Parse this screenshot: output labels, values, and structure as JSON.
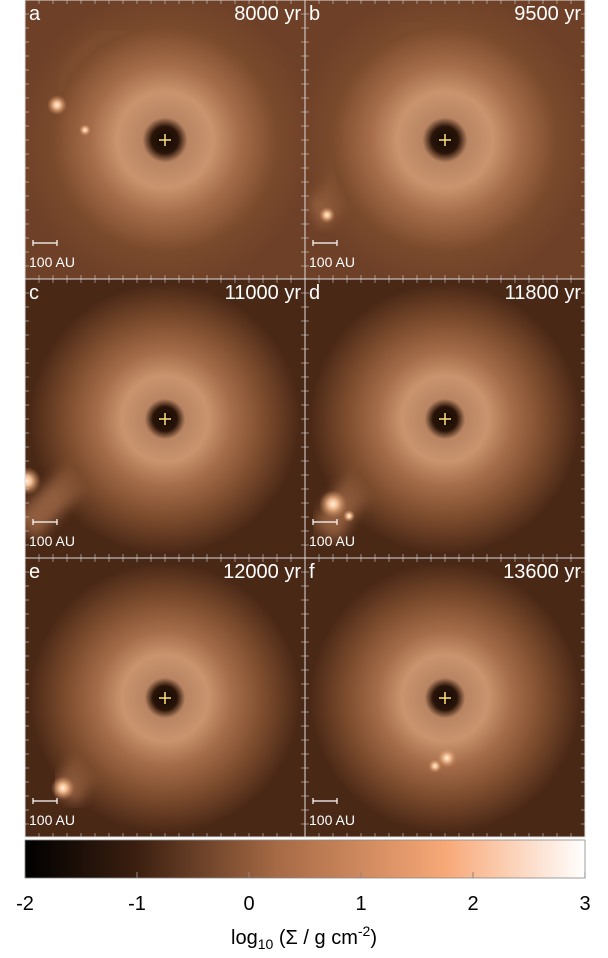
{
  "chart_data": {
    "type": "image-grid",
    "panels": [
      {
        "label": "a",
        "time": "8000 yr",
        "scale": "100 AU"
      },
      {
        "label": "b",
        "time": "9500 yr",
        "scale": "100 AU"
      },
      {
        "label": "c",
        "time": "11000 yr",
        "scale": "100 AU"
      },
      {
        "label": "d",
        "time": "11800 yr",
        "scale": "100 AU"
      },
      {
        "label": "e",
        "time": "12000 yr",
        "scale": "100 AU"
      },
      {
        "label": "f",
        "time": "13600 yr",
        "scale": "100 AU"
      }
    ],
    "colorbar": {
      "xlim": [
        -2,
        3
      ],
      "xticks": [
        -2,
        -1,
        0,
        1,
        2,
        3
      ],
      "xlabel": [
        "log",
        "10",
        " (Σ / g cm",
        "-2",
        ")"
      ]
    }
  }
}
